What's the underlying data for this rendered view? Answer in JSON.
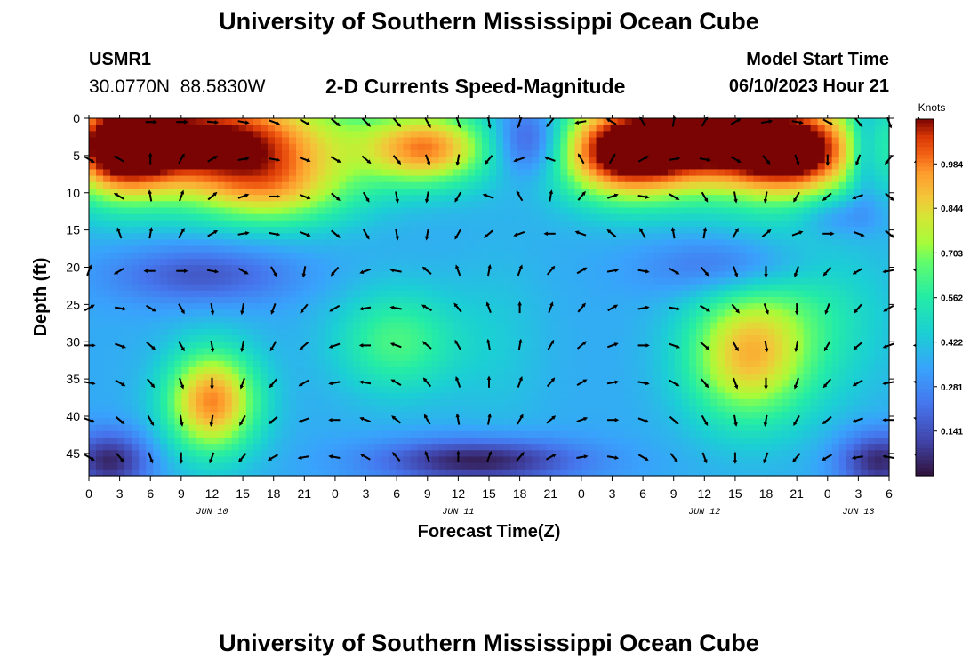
{
  "page": {
    "title_top": "University of Southern Mississippi Ocean Cube",
    "title_bottom": "University of Southern Mississippi Ocean Cube",
    "station_id": "USMR1",
    "station_coords": "30.0770N  88.5830W",
    "subtitle": "2-D Currents Speed-Magnitude",
    "model_label": "Model Start Time",
    "model_value": "06/10/2023 Hour 21"
  },
  "chart_data": {
    "type": "heatmap",
    "title": "2-D Currents Speed-Magnitude",
    "xlabel": "Forecast Time(Z)",
    "ylabel": "Depth (ft)",
    "colorbar_label": "Knots",
    "colorbar_ticks": [
      "0.984",
      "0.844",
      "0.703",
      "0.562",
      "0.422",
      "0.281",
      "0.141"
    ],
    "colorbar_range": [
      0.0,
      1.125
    ],
    "x_hours_range": [
      0,
      78
    ],
    "x_tick_labels": [
      "0",
      "3",
      "6",
      "9",
      "12",
      "15",
      "18",
      "21",
      "0",
      "3",
      "6",
      "9",
      "12",
      "15",
      "18",
      "21",
      "0",
      "3",
      "6",
      "9",
      "12",
      "15",
      "18",
      "21",
      "0",
      "3",
      "6"
    ],
    "date_labels": [
      {
        "text": "JUN 10",
        "hour": 12
      },
      {
        "text": "JUN 11",
        "hour": 36
      },
      {
        "text": "JUN 12",
        "hour": 60
      },
      {
        "text": "JUN 13",
        "hour": 75
      }
    ],
    "y_ticks": [
      0,
      5,
      10,
      15,
      20,
      25,
      30,
      35,
      40,
      45
    ],
    "y_range": [
      0,
      48
    ],
    "speed_field": {
      "background": 0.32,
      "blobs": [
        {
          "x": 12,
          "y": 3,
          "sx": 13,
          "sy": 7,
          "a": 0.72
        },
        {
          "x": 3,
          "y": 4,
          "sx": 5,
          "sy": 7,
          "a": 0.5
        },
        {
          "x": 33,
          "y": 4,
          "sx": 6,
          "sy": 5,
          "a": 0.5
        },
        {
          "x": 18,
          "y": 10,
          "sx": 8,
          "sy": 5,
          "a": 0.3
        },
        {
          "x": 61,
          "y": 3,
          "sx": 13,
          "sy": 7,
          "a": 0.72
        },
        {
          "x": 52,
          "y": 5,
          "sx": 6,
          "sy": 6,
          "a": 0.45
        },
        {
          "x": 69,
          "y": 5,
          "sx": 6,
          "sy": 6,
          "a": 0.4
        },
        {
          "x": 43,
          "y": 3,
          "sx": 3.5,
          "sy": 5,
          "a": -0.3
        },
        {
          "x": 75.5,
          "y": 4,
          "sx": 1.5,
          "sy": 7,
          "a": -0.2
        },
        {
          "x": 12,
          "y": 38,
          "sx": 4.5,
          "sy": 7,
          "a": 0.55
        },
        {
          "x": 64,
          "y": 32,
          "sx": 6,
          "sy": 9,
          "a": 0.42
        },
        {
          "x": 30,
          "y": 30,
          "sx": 6,
          "sy": 7,
          "a": 0.24
        },
        {
          "x": 11,
          "y": 21,
          "sx": 9,
          "sy": 4,
          "a": -0.18
        },
        {
          "x": 63,
          "y": 20,
          "sx": 8,
          "sy": 4,
          "a": -0.18
        },
        {
          "x": 73,
          "y": 13,
          "sx": 4,
          "sy": 3,
          "a": -0.13
        },
        {
          "x": 38,
          "y": 46,
          "sx": 10,
          "sy": 3,
          "a": -0.3
        },
        {
          "x": 2,
          "y": 46,
          "sx": 4,
          "sy": 4,
          "a": -0.28
        },
        {
          "x": 77,
          "y": 46,
          "sx": 4,
          "sy": 4,
          "a": -0.28
        },
        {
          "x": 70,
          "y": 26,
          "sx": 8,
          "sy": 12,
          "a": 0.16
        },
        {
          "x": 40,
          "y": 30,
          "sx": 5,
          "sy": 12,
          "a": 0.06
        }
      ]
    },
    "vector_rows": [
      {
        "depth": 0,
        "dirs": [
          null,
          null,
          90,
          90,
          95,
          100,
          110,
          120,
          130,
          135,
          140,
          150,
          160,
          170,
          200,
          220,
          260,
          300,
          330,
          10,
          30,
          60,
          80,
          100,
          120,
          140,
          160,
          160
        ]
      },
      {
        "depth": 5,
        "dirs": [
          120,
          300,
          0,
          30,
          60,
          80,
          100,
          110,
          120,
          130,
          140,
          160,
          190,
          220,
          250,
          290,
          330,
          30,
          60,
          80,
          100,
          120,
          140,
          160,
          180,
          200,
          220,
          240
        ]
      },
      {
        "depth": 10,
        "dirs": [
          null,
          300,
          350,
          20,
          50,
          70,
          90,
          110,
          130,
          150,
          170,
          190,
          210,
          290,
          330,
          10,
          40,
          70,
          100,
          120,
          150,
          170,
          190,
          210,
          230,
          250,
          130,
          130
        ]
      },
      {
        "depth": 15,
        "dirs": [
          null,
          340,
          10,
          30,
          60,
          80,
          100,
          110,
          130,
          150,
          170,
          190,
          210,
          230,
          250,
          270,
          290,
          310,
          330,
          350,
          10,
          30,
          50,
          70,
          90,
          110,
          130,
          150
        ]
      },
      {
        "depth": 20,
        "dirs": [
          20,
          240,
          270,
          90,
          100,
          120,
          150,
          190,
          220,
          250,
          280,
          310,
          340,
          10,
          20,
          40,
          60,
          80,
          100,
          120,
          140,
          160,
          180,
          200,
          220,
          240,
          260,
          280
        ]
      },
      {
        "depth": 25,
        "dirs": [
          60,
          100,
          120,
          150,
          170,
          190,
          200,
          220,
          240,
          260,
          280,
          300,
          320,
          340,
          0,
          20,
          40,
          60,
          80,
          100,
          120,
          140,
          160,
          180,
          200,
          220,
          240,
          260
        ]
      },
      {
        "depth": 30,
        "dirs": [
          90,
          110,
          130,
          150,
          170,
          190,
          210,
          230,
          250,
          270,
          290,
          310,
          330,
          350,
          10,
          30,
          50,
          70,
          90,
          110,
          130,
          150,
          170,
          190,
          210,
          230,
          250,
          270
        ]
      },
      {
        "depth": 35,
        "dirs": [
          100,
          120,
          140,
          160,
          180,
          200,
          220,
          240,
          260,
          280,
          300,
          320,
          340,
          0,
          20,
          40,
          60,
          80,
          100,
          120,
          140,
          160,
          180,
          200,
          220,
          240,
          260,
          280
        ]
      },
      {
        "depth": 40,
        "dirs": [
          110,
          130,
          150,
          170,
          190,
          210,
          230,
          250,
          270,
          290,
          310,
          330,
          350,
          10,
          30,
          50,
          70,
          90,
          110,
          130,
          150,
          170,
          190,
          210,
          230,
          250,
          270,
          290
        ]
      },
      {
        "depth": 45,
        "dirs": [
          120,
          140,
          160,
          180,
          200,
          220,
          240,
          260,
          280,
          300,
          320,
          340,
          0,
          20,
          40,
          60,
          80,
          100,
          120,
          140,
          160,
          180,
          200,
          220,
          240,
          260,
          280,
          300
        ]
      }
    ]
  }
}
